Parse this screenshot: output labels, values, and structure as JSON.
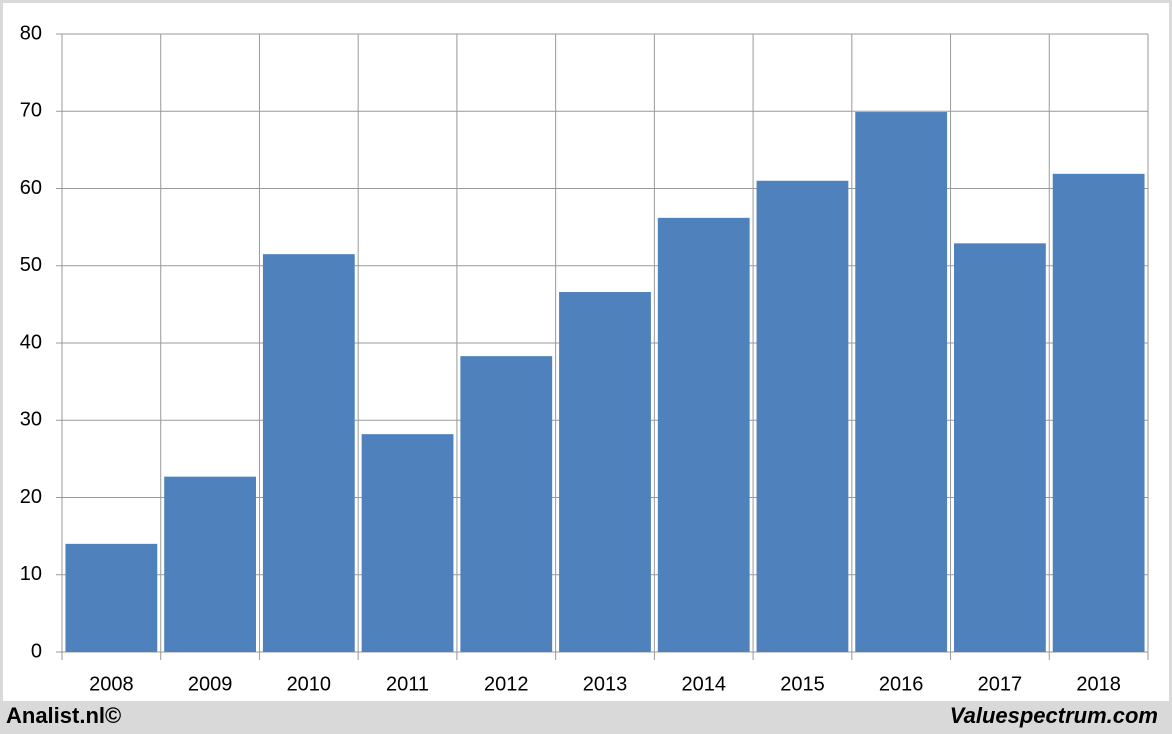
{
  "chart_data": {
    "type": "bar",
    "categories": [
      "2008",
      "2009",
      "2010",
      "2011",
      "2012",
      "2013",
      "2014",
      "2015",
      "2016",
      "2017",
      "2018"
    ],
    "values": [
      14.0,
      22.7,
      51.5,
      28.2,
      38.3,
      46.6,
      56.2,
      61.0,
      69.9,
      52.9,
      61.9
    ],
    "color": "#4f81bd",
    "ylim": [
      0,
      80
    ],
    "yticks": [
      0,
      10,
      20,
      30,
      40,
      50,
      60,
      70,
      80
    ],
    "grid": true,
    "credits": [
      "Analist.nl©",
      "Valuespectrum.com"
    ]
  }
}
